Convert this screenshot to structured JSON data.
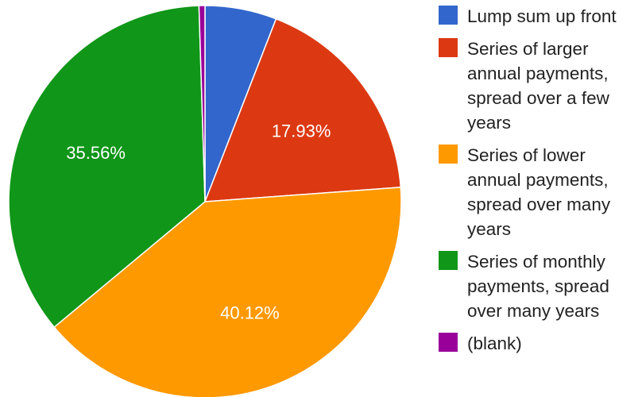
{
  "chart_data": {
    "type": "pie",
    "title": "",
    "slices": [
      {
        "label": "Lump sum up front",
        "value": 5.9,
        "display": "",
        "color": "#3366cc"
      },
      {
        "label": "Series of larger annual payments, spread over a few years",
        "value": 17.93,
        "display": "17.93%",
        "color": "#dc3912"
      },
      {
        "label": "Series of lower annual payments, spread over many years",
        "value": 40.12,
        "display": "40.12%",
        "color": "#ff9900"
      },
      {
        "label": "Series of monthly payments, spread over many years",
        "value": 35.56,
        "display": "35.56%",
        "color": "#109618"
      },
      {
        "label": "(blank)",
        "value": 0.49,
        "display": "",
        "color": "#990099"
      }
    ],
    "legend_position": "right"
  },
  "legend": [
    {
      "text": "Lump sum up front",
      "color": "#3366cc"
    },
    {
      "text": "Series of larger\nannual payments,\nspread over a few\nyears",
      "color": "#dc3912"
    },
    {
      "text": "Series of lower\nannual payments,\nspread over many\nyears",
      "color": "#ff9900"
    },
    {
      "text": "Series of monthly\npayments, spread\nover many years",
      "color": "#109618"
    },
    {
      "text": "(blank)",
      "color": "#990099"
    }
  ]
}
